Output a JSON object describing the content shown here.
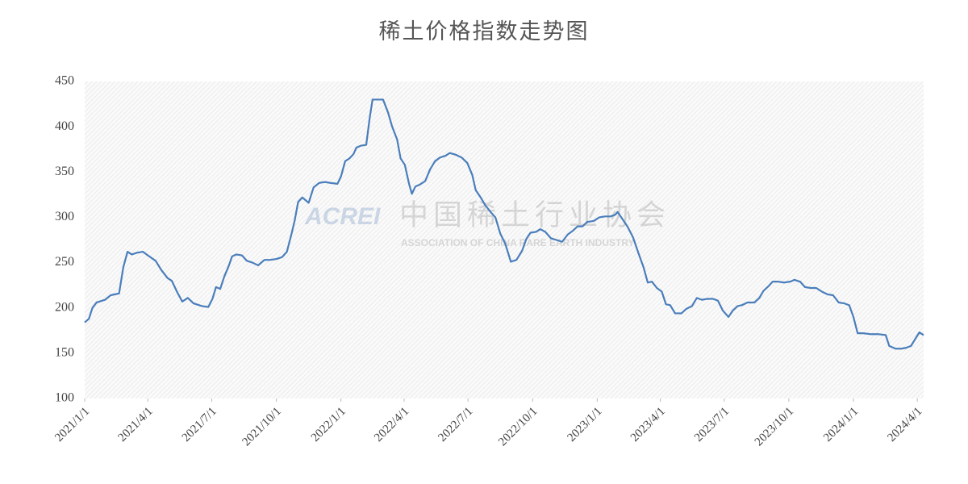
{
  "chart_data": {
    "type": "line",
    "title": "稀土价格指数走势图",
    "watermark": [
      "ACREI",
      "中国稀土行业协会",
      "ASSOCIATION OF CHINA RARE EARTH INDUSTRY"
    ],
    "xlim": [
      "2021-01-01",
      "2024-04-10"
    ],
    "xticks": [
      {
        "value": "2021-01-01",
        "label": "2021/1/1"
      },
      {
        "value": "2021-04-01",
        "label": "2021/4/1"
      },
      {
        "value": "2021-07-01",
        "label": "2021/7/1"
      },
      {
        "value": "2021-10-01",
        "label": "2021/10/1"
      },
      {
        "value": "2022-01-01",
        "label": "2022/1/1"
      },
      {
        "value": "2022-04-01",
        "label": "2022/4/1"
      },
      {
        "value": "2022-07-01",
        "label": "2022/7/1"
      },
      {
        "value": "2022-10-01",
        "label": "2022/10/1"
      },
      {
        "value": "2023-01-01",
        "label": "2023/1/1"
      },
      {
        "value": "2023-04-01",
        "label": "2023/4/1"
      },
      {
        "value": "2023-07-01",
        "label": "2023/7/1"
      },
      {
        "value": "2023-10-01",
        "label": "2023/10/1"
      },
      {
        "value": "2024-01-01",
        "label": "2024/1/1"
      },
      {
        "value": "2024-04-01",
        "label": "2024/4/1"
      }
    ],
    "ylim": [
      100,
      450
    ],
    "yticks": [
      100,
      150,
      200,
      250,
      300,
      350,
      400,
      450
    ],
    "grid": false,
    "x": [
      "2021-01-01",
      "2021-01-07",
      "2021-01-12",
      "2021-01-18",
      "2021-01-30",
      "2021-02-07",
      "2021-02-19",
      "2021-02-25",
      "2021-03-03",
      "2021-03-09",
      "2021-03-17",
      "2021-03-25",
      "2021-04-01",
      "2021-04-12",
      "2021-04-20",
      "2021-04-29",
      "2021-05-05",
      "2021-05-13",
      "2021-05-20",
      "2021-05-28",
      "2021-06-05",
      "2021-06-17",
      "2021-06-26",
      "2021-07-02",
      "2021-07-07",
      "2021-07-13",
      "2021-07-19",
      "2021-07-25",
      "2021-07-30",
      "2021-08-05",
      "2021-08-13",
      "2021-08-20",
      "2021-08-28",
      "2021-09-05",
      "2021-09-14",
      "2021-09-22",
      "2021-10-01",
      "2021-10-09",
      "2021-10-16",
      "2021-10-23",
      "2021-10-27",
      "2021-11-01",
      "2021-11-07",
      "2021-11-16",
      "2021-11-23",
      "2021-12-01",
      "2021-12-09",
      "2021-12-17",
      "2021-12-27",
      "2022-01-01",
      "2022-01-07",
      "2022-01-13",
      "2022-01-19",
      "2022-01-23",
      "2022-01-29",
      "2022-02-06",
      "2022-02-11",
      "2022-02-15",
      "2022-03-02",
      "2022-03-09",
      "2022-03-15",
      "2022-03-22",
      "2022-03-27",
      "2022-04-02",
      "2022-04-08",
      "2022-04-12",
      "2022-04-17",
      "2022-04-23",
      "2022-05-01",
      "2022-05-08",
      "2022-05-15",
      "2022-05-22",
      "2022-05-30",
      "2022-06-05",
      "2022-06-14",
      "2022-06-22",
      "2022-06-30",
      "2022-07-07",
      "2022-07-12",
      "2022-07-19",
      "2022-07-25",
      "2022-08-02",
      "2022-08-09",
      "2022-08-16",
      "2022-08-23",
      "2022-08-31",
      "2022-09-08",
      "2022-09-16",
      "2022-09-22",
      "2022-09-28",
      "2022-10-06",
      "2022-10-12",
      "2022-10-19",
      "2022-10-27",
      "2022-11-04",
      "2022-11-12",
      "2022-11-20",
      "2022-11-27",
      "2022-12-04",
      "2022-12-11",
      "2022-12-18",
      "2022-12-27",
      "2023-01-04",
      "2023-01-12",
      "2023-01-20",
      "2023-01-27",
      "2023-01-30",
      "2023-02-06",
      "2023-02-13",
      "2023-02-21",
      "2023-03-01",
      "2023-03-08",
      "2023-03-14",
      "2023-03-20",
      "2023-03-27",
      "2023-04-03",
      "2023-04-09",
      "2023-04-15",
      "2023-04-22",
      "2023-05-01",
      "2023-05-08",
      "2023-05-16",
      "2023-05-23",
      "2023-05-30",
      "2023-06-07",
      "2023-06-15",
      "2023-06-22",
      "2023-06-29",
      "2023-07-07",
      "2023-07-13",
      "2023-07-20",
      "2023-07-26",
      "2023-08-03",
      "2023-08-13",
      "2023-08-20",
      "2023-08-26",
      "2023-09-02",
      "2023-09-08",
      "2023-09-16",
      "2023-09-24",
      "2023-10-03",
      "2023-10-09",
      "2023-10-17",
      "2023-10-24",
      "2023-11-01",
      "2023-11-09",
      "2023-11-17",
      "2023-11-25",
      "2023-12-03",
      "2023-12-11",
      "2023-12-19",
      "2023-12-26",
      "2024-01-01",
      "2024-01-07",
      "2024-01-15",
      "2024-01-26",
      "2024-02-06",
      "2024-02-16",
      "2024-02-21",
      "2024-03-01",
      "2024-03-09",
      "2024-03-16",
      "2024-03-23",
      "2024-03-30",
      "2024-04-04",
      "2024-04-10"
    ],
    "series": [
      {
        "color": "#4a7ebb",
        "values": [
          184,
          188,
          200,
          206,
          209,
          214,
          216,
          245,
          262,
          259,
          261,
          262,
          258,
          252,
          242,
          233,
          230,
          217,
          207,
          211,
          205,
          202,
          201,
          210,
          223,
          221,
          235,
          246,
          257,
          259,
          258,
          252,
          250,
          247,
          253,
          253,
          254,
          256,
          262,
          283,
          296,
          317,
          322,
          316,
          333,
          338,
          339,
          338,
          337,
          345,
          362,
          365,
          370,
          377,
          379,
          380,
          410,
          430,
          430,
          416,
          400,
          386,
          365,
          358,
          337,
          326,
          334,
          336,
          340,
          353,
          362,
          366,
          368,
          371,
          369,
          366,
          360,
          347,
          330,
          322,
          314,
          306,
          300,
          282,
          271,
          251,
          253,
          263,
          276,
          283,
          284,
          287,
          284,
          277,
          275,
          273,
          281,
          285,
          290,
          290,
          295,
          296,
          300,
          301,
          301,
          303,
          306,
          298,
          290,
          278,
          260,
          245,
          228,
          229,
          222,
          218,
          204,
          203,
          194,
          194,
          199,
          202,
          211,
          209,
          210,
          210,
          208,
          197,
          190,
          197,
          202,
          203,
          206,
          206,
          211,
          219,
          224,
          229,
          229,
          228,
          229,
          231,
          229,
          223,
          222,
          222,
          218,
          215,
          214,
          206,
          205,
          203,
          190,
          172,
          172,
          171,
          171,
          170,
          158,
          155,
          155,
          156,
          158,
          167,
          173,
          170
        ]
      }
    ]
  }
}
